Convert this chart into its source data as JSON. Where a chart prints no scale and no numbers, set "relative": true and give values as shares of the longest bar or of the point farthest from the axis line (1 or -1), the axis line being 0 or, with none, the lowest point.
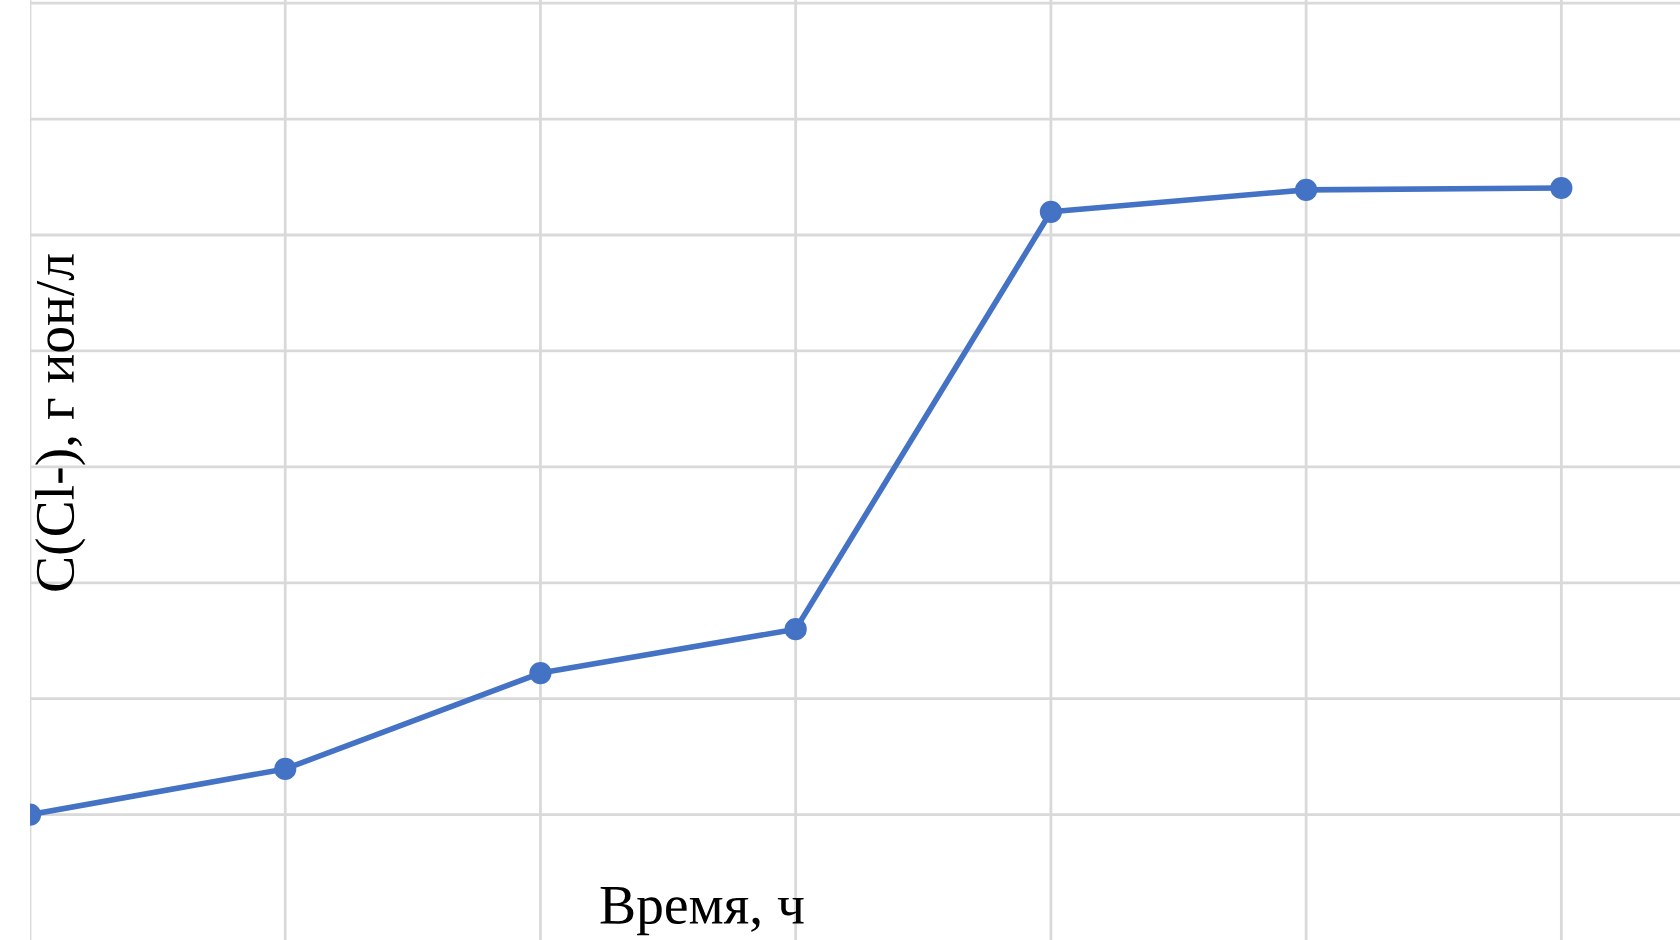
{
  "chart_data": {
    "type": "line",
    "xlabel": "Время, ч",
    "ylabel": "C(Cl-), г ион/л",
    "relative": true,
    "categories": [
      null,
      null,
      null,
      null,
      null,
      null,
      null
    ],
    "series": [
      {
        "color": "#4472c4",
        "values": [
          0,
          0.073,
          0.226,
          0.296,
          0.962,
          0.997,
          1
        ]
      }
    ],
    "grid": true,
    "marker": "circle",
    "line_style": "solid"
  }
}
